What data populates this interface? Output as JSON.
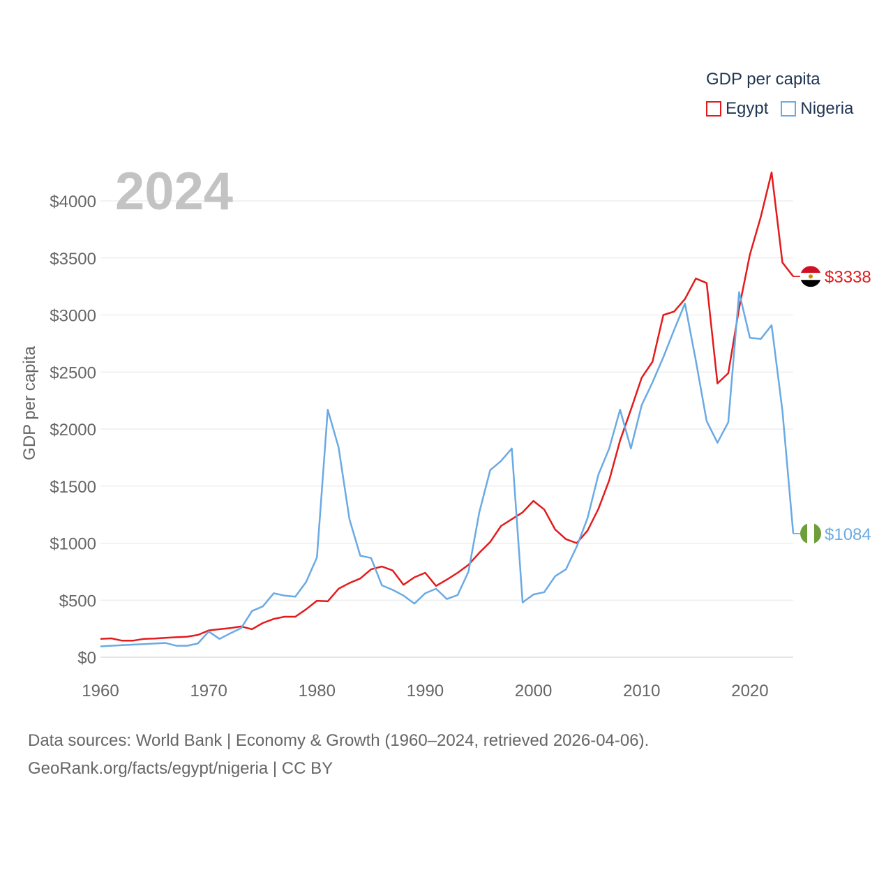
{
  "legend": {
    "title": "GDP per capita",
    "items": [
      {
        "name": "Egypt",
        "color": "#e41a1c"
      },
      {
        "name": "Nigeria",
        "color": "#6aaae4"
      }
    ]
  },
  "year_label": "2024",
  "sources": {
    "line1": "Data sources: World Bank | Economy & Growth (1960–2024, retrieved 2026-04-06).",
    "line2": "GeoRank.org/facts/egypt/nigeria | CC BY"
  },
  "chart_data": {
    "type": "line",
    "title": "",
    "xlabel": "",
    "ylabel": "GDP per capita",
    "xlim": [
      1960,
      2024
    ],
    "ylim": [
      0,
      4000
    ],
    "x_ticks": [
      1960,
      1970,
      1980,
      1990,
      2000,
      2010,
      2020
    ],
    "x_tick_labels": [
      "1960",
      "1970",
      "1980",
      "1990",
      "2000",
      "2010",
      "2020"
    ],
    "y_ticks": [
      0,
      500,
      1000,
      1500,
      2000,
      2500,
      3000,
      3500,
      4000
    ],
    "y_tick_labels": [
      "$0",
      "$500",
      "$1000",
      "$1500",
      "$2000",
      "$2500",
      "$3000",
      "$3500",
      "$4000"
    ],
    "grid": true,
    "legend_position": "top-right",
    "x": [
      1960,
      1961,
      1962,
      1963,
      1964,
      1965,
      1966,
      1967,
      1968,
      1969,
      1970,
      1971,
      1972,
      1973,
      1974,
      1975,
      1976,
      1977,
      1978,
      1979,
      1980,
      1981,
      1982,
      1983,
      1984,
      1985,
      1986,
      1987,
      1988,
      1989,
      1990,
      1991,
      1992,
      1993,
      1994,
      1995,
      1996,
      1997,
      1998,
      1999,
      2000,
      2001,
      2002,
      2003,
      2004,
      2005,
      2006,
      2007,
      2008,
      2009,
      2010,
      2011,
      2012,
      2013,
      2014,
      2015,
      2016,
      2017,
      2018,
      2019,
      2020,
      2021,
      2022,
      2023,
      2024
    ],
    "series": [
      {
        "name": "Egypt",
        "color": "#e41a1c",
        "end_label": "$3338",
        "values": [
          160,
          165,
          145,
          145,
          160,
          163,
          170,
          175,
          180,
          195,
          235,
          245,
          255,
          270,
          245,
          300,
          335,
          355,
          355,
          420,
          495,
          490,
          600,
          650,
          690,
          770,
          795,
          760,
          635,
          700,
          740,
          625,
          680,
          740,
          810,
          915,
          1010,
          1150,
          1210,
          1270,
          1370,
          1295,
          1120,
          1035,
          1000,
          1110,
          1300,
          1550,
          1900,
          2170,
          2450,
          2590,
          3000,
          3030,
          3140,
          3320,
          3280,
          2400,
          2490,
          3060,
          3530,
          3860,
          4250,
          3460,
          3338
        ]
      },
      {
        "name": "Nigeria",
        "color": "#6aaae4",
        "end_label": "$1084",
        "values": [
          95,
          100,
          105,
          110,
          115,
          120,
          125,
          100,
          100,
          120,
          225,
          160,
          210,
          255,
          405,
          445,
          560,
          540,
          530,
          660,
          875,
          2170,
          1840,
          1210,
          890,
          870,
          630,
          590,
          540,
          470,
          560,
          600,
          510,
          545,
          750,
          1270,
          1640,
          1720,
          1830,
          480,
          550,
          570,
          710,
          770,
          970,
          1220,
          1600,
          1830,
          2170,
          1830,
          2210,
          2410,
          2630,
          2870,
          3100,
          2600,
          2070,
          1880,
          2060,
          3200,
          2800,
          2790,
          2910,
          2160,
          1084
        ]
      }
    ]
  }
}
